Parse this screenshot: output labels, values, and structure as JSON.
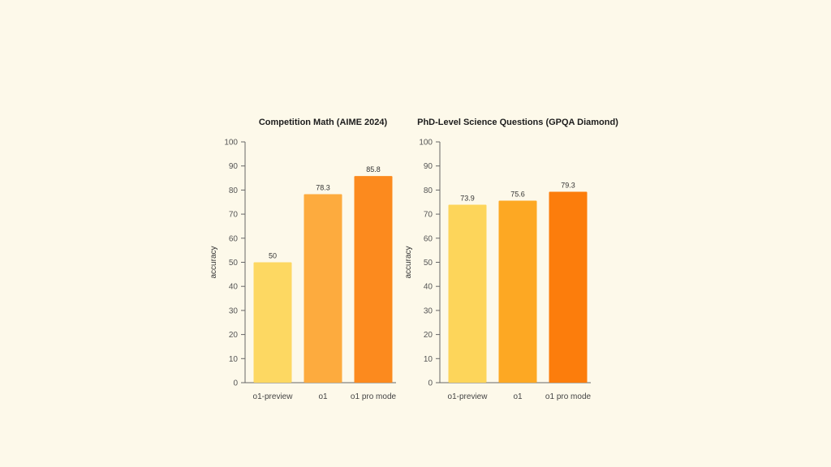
{
  "chart_data": [
    {
      "type": "bar",
      "title": "Competition Math (AIME 2024)",
      "xlabel": "",
      "ylabel": "accuracy",
      "ylim": [
        0,
        100
      ],
      "yticks": [
        0,
        10,
        20,
        30,
        40,
        50,
        60,
        70,
        80,
        90,
        100
      ],
      "categories": [
        "o1-preview",
        "o1",
        "o1 pro mode"
      ],
      "values": [
        50,
        78.3,
        85.8
      ],
      "value_labels": [
        "50",
        "78.3",
        "85.8"
      ],
      "colors": [
        "#fdd862",
        "#fdab3e",
        "#fc8a1e"
      ],
      "grid": false
    },
    {
      "type": "bar",
      "title": "PhD-Level Science Questions (GPQA Diamond)",
      "xlabel": "",
      "ylabel": "accuracy",
      "ylim": [
        0,
        100
      ],
      "yticks": [
        0,
        10,
        20,
        30,
        40,
        50,
        60,
        70,
        80,
        90,
        100
      ],
      "categories": [
        "o1-preview",
        "o1",
        "o1 pro mode"
      ],
      "values": [
        73.9,
        75.6,
        79.3
      ],
      "value_labels": [
        "73.9",
        "75.6",
        "79.3"
      ],
      "colors": [
        "#fdd55a",
        "#fda823",
        "#fc7d0c"
      ],
      "grid": false
    }
  ]
}
